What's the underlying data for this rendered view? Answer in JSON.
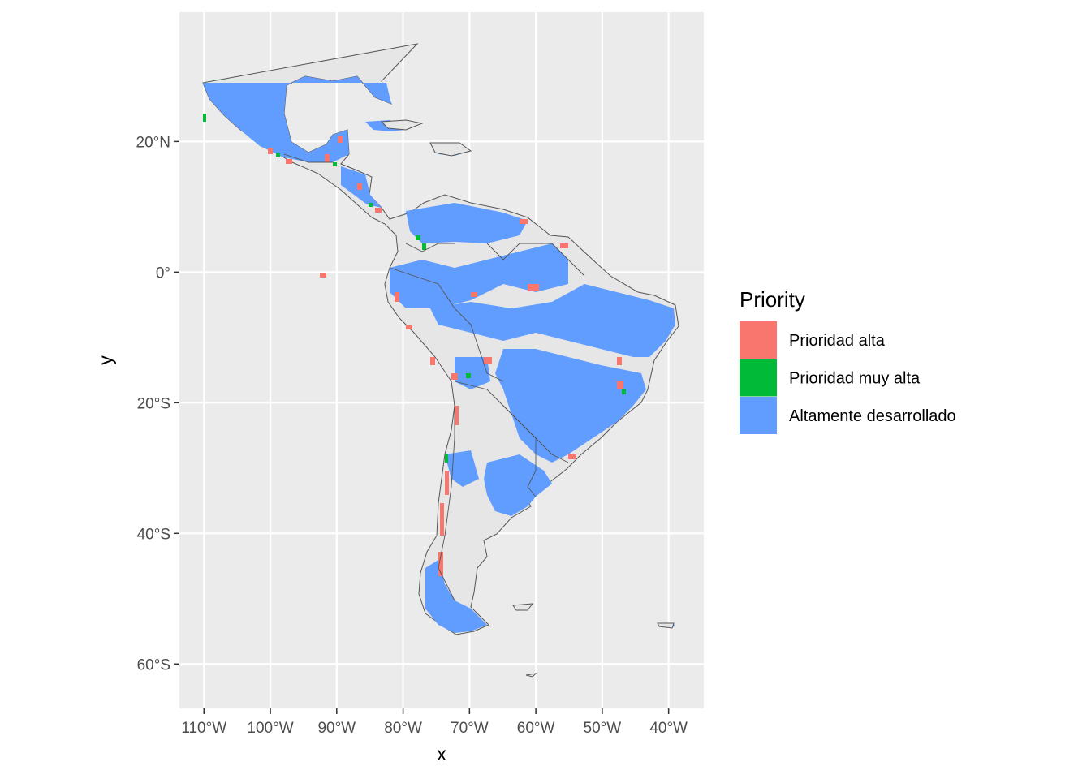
{
  "chart_data": {
    "type": "map",
    "xlabel": "x",
    "ylabel": "y",
    "x_ticks": [
      {
        "value": -110,
        "label": "110°W"
      },
      {
        "value": -100,
        "label": "100°W"
      },
      {
        "value": -90,
        "label": "90°W"
      },
      {
        "value": -80,
        "label": "80°W"
      },
      {
        "value": -70,
        "label": "70°W"
      },
      {
        "value": -60,
        "label": "60°W"
      },
      {
        "value": -50,
        "label": "50°W"
      },
      {
        "value": -40,
        "label": "40°W"
      }
    ],
    "y_ticks": [
      {
        "value": 20,
        "label": "20°N"
      },
      {
        "value": 0,
        "label": "0°"
      },
      {
        "value": -20,
        "label": "20°S"
      },
      {
        "value": -40,
        "label": "40°S"
      },
      {
        "value": -60,
        "label": "60°S"
      }
    ],
    "xlim": [
      -113.7,
      -34.7
    ],
    "ylim": [
      -66.8,
      39.8
    ],
    "grid": true,
    "legend": {
      "title": "Priority",
      "placement": "right",
      "entries": [
        {
          "label": "Prioridad alta",
          "color": "#F8766D"
        },
        {
          "label": "Prioridad muy alta",
          "color": "#00BA38"
        },
        {
          "label": "Altamente desarrollado",
          "color": "#619CFF"
        }
      ]
    },
    "colors": {
      "panel_background": "#EBEBEB",
      "grid": "#FFFFFF",
      "land": "#E6E6E6",
      "border": "#555555"
    }
  }
}
